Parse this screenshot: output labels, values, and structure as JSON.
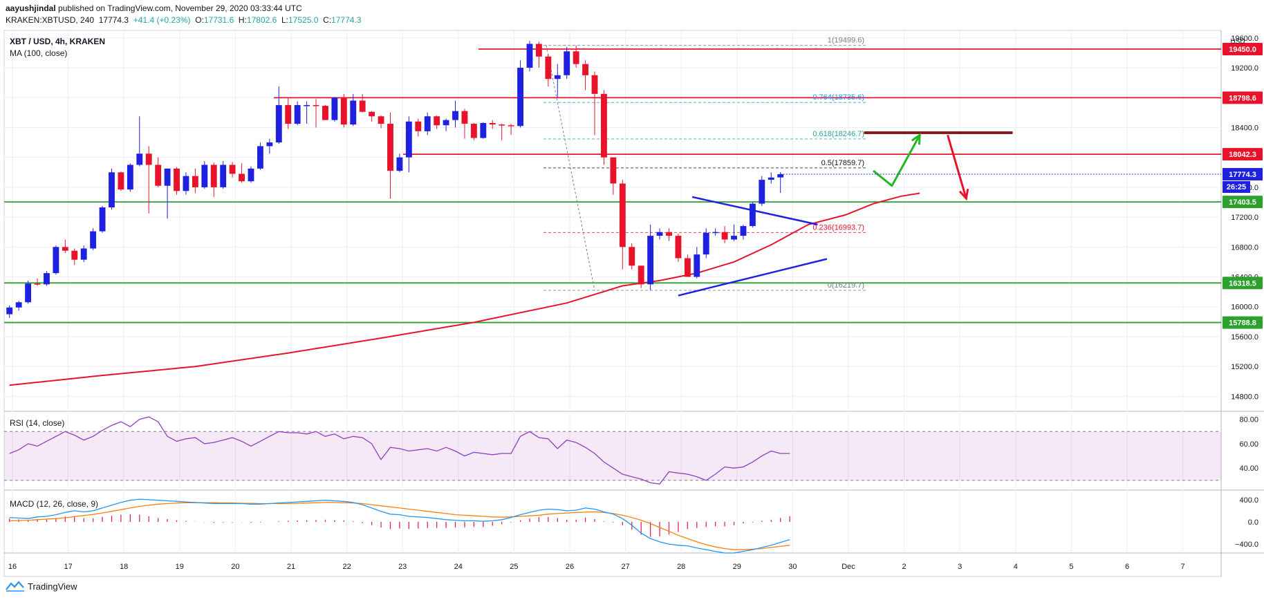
{
  "header": {
    "author": "aayushjindal",
    "published": "published on TradingView.com, November 29, 2020 03:33:44 UTC",
    "symbol": "KRAKEN:XBTUSD, 240",
    "last": "17774.3",
    "change": "+41.4 (+0.23%)",
    "o_label": "O:",
    "o": "17731.6",
    "h_label": "H:",
    "h": "17802.6",
    "l_label": "L:",
    "l": "17525.0",
    "c_label": "C:",
    "c": "17774.3"
  },
  "footer": {
    "brand": "TradingView"
  },
  "colors": {
    "up": "#1e22e0",
    "down": "#e8132b",
    "ma": "#e8132b",
    "support": "#2da12d",
    "rsi": "#8e3fbf",
    "macd": "#2196f3",
    "signal": "#ff7f0e",
    "hist": "#e91e63"
  },
  "chart_data": [
    {
      "type": "candlestick",
      "title": "XBT / USD, 4h, KRAKEN",
      "indicator_label": "MA (100, close)",
      "currency": "USD",
      "ylim": [
        14600,
        19700
      ],
      "y_ticks": [
        14800,
        15200,
        15600,
        16000,
        16400,
        16800,
        17200,
        17600,
        18000,
        18400,
        18800,
        19200,
        19600
      ],
      "y_tick_labels": [
        "14800.0",
        "15200.0",
        "15600.0",
        "16000.0",
        "16400.0",
        "16800.0",
        "17200.0",
        "17600.0",
        "18000.0",
        "18400.0",
        "18800.0",
        "19200.0",
        "19600.0"
      ],
      "x_labels": [
        "16",
        "17",
        "18",
        "19",
        "20",
        "21",
        "22",
        "23",
        "24",
        "25",
        "26",
        "27",
        "28",
        "29",
        "30",
        "Dec",
        "2",
        "3",
        "4",
        "5",
        "6",
        "7"
      ],
      "candles_ohlc": [
        [
          15900,
          16020,
          15850,
          15990
        ],
        [
          15990,
          16080,
          15950,
          16060
        ],
        [
          16060,
          16350,
          16040,
          16310
        ],
        [
          16310,
          16380,
          16280,
          16300
        ],
        [
          16300,
          16480,
          16280,
          16450
        ],
        [
          16450,
          16820,
          16430,
          16800
        ],
        [
          16800,
          16900,
          16720,
          16750
        ],
        [
          16750,
          16780,
          16560,
          16630
        ],
        [
          16630,
          16820,
          16600,
          16780
        ],
        [
          16780,
          17050,
          16760,
          17010
        ],
        [
          17010,
          17350,
          16990,
          17330
        ],
        [
          17330,
          17850,
          17300,
          17800
        ],
        [
          17800,
          17810,
          17550,
          17570
        ],
        [
          17570,
          17920,
          17540,
          17900
        ],
        [
          17900,
          18550,
          17880,
          18050
        ],
        [
          18050,
          18150,
          17250,
          17900
        ],
        [
          17900,
          18000,
          17600,
          17620
        ],
        [
          17620,
          17850,
          17180,
          17850
        ],
        [
          17850,
          17870,
          17500,
          17550
        ],
        [
          17550,
          17800,
          17500,
          17750
        ],
        [
          17750,
          17850,
          17520,
          17600
        ],
        [
          17600,
          17950,
          17580,
          17900
        ],
        [
          17900,
          17930,
          17470,
          17600
        ],
        [
          17600,
          17950,
          17580,
          17900
        ],
        [
          17900,
          17940,
          17730,
          17780
        ],
        [
          17780,
          17920,
          17660,
          17680
        ],
        [
          17680,
          17880,
          17660,
          17850
        ],
        [
          17850,
          18200,
          17830,
          18150
        ],
        [
          18150,
          18250,
          18050,
          18200
        ],
        [
          18200,
          18950,
          18180,
          18700
        ],
        [
          18700,
          18800,
          18380,
          18450
        ],
        [
          18450,
          18750,
          18430,
          18700
        ],
        [
          18700,
          18750,
          18450,
          18700
        ],
        [
          18700,
          18780,
          18400,
          18690
        ],
        [
          18690,
          18700,
          18500,
          18500
        ],
        [
          18500,
          18810,
          18480,
          18800
        ],
        [
          18800,
          18850,
          18400,
          18440
        ],
        [
          18440,
          18850,
          18420,
          18760
        ],
        [
          18760,
          18850,
          18600,
          18610
        ],
        [
          18610,
          18620,
          18480,
          18550
        ],
        [
          18550,
          18560,
          18390,
          18450
        ],
        [
          18450,
          18600,
          17450,
          17820
        ],
        [
          17820,
          18050,
          17800,
          18000
        ],
        [
          18000,
          18550,
          17800,
          18480
        ],
        [
          18480,
          18520,
          18280,
          18350
        ],
        [
          18350,
          18600,
          18300,
          18550
        ],
        [
          18550,
          18560,
          18380,
          18430
        ],
        [
          18430,
          18520,
          18350,
          18500
        ],
        [
          18500,
          18760,
          18400,
          18620
        ],
        [
          18620,
          18650,
          18250,
          18450
        ],
        [
          18450,
          18460,
          18230,
          18260
        ],
        [
          18260,
          18470,
          18250,
          18460
        ],
        [
          18460,
          18500,
          18380,
          18440
        ],
        [
          18440,
          18450,
          18230,
          18430
        ],
        [
          18430,
          18450,
          18300,
          18420
        ],
        [
          18420,
          19300,
          18400,
          19200
        ],
        [
          19200,
          19560,
          19150,
          19520
        ],
        [
          19520,
          19550,
          19200,
          19350
        ],
        [
          19350,
          19380,
          18950,
          19050
        ],
        [
          19050,
          19250,
          18800,
          19100
        ],
        [
          19100,
          19480,
          19050,
          19420
        ],
        [
          19420,
          19500,
          19200,
          19250
        ],
        [
          19250,
          19300,
          18900,
          19100
        ],
        [
          19100,
          19150,
          18300,
          18850
        ],
        [
          18850,
          18900,
          17900,
          18000
        ],
        [
          18000,
          18000,
          17500,
          17650
        ],
        [
          17650,
          17700,
          16500,
          16800
        ],
        [
          16800,
          16850,
          16500,
          16550
        ],
        [
          16550,
          16550,
          16250,
          16300
        ],
        [
          16300,
          17100,
          16220,
          16950
        ],
        [
          16950,
          17050,
          16900,
          17000
        ],
        [
          17000,
          17050,
          16880,
          16950
        ],
        [
          16950,
          16980,
          16600,
          16650
        ],
        [
          16650,
          16700,
          16400,
          16400
        ],
        [
          16400,
          16800,
          16380,
          16700
        ],
        [
          16700,
          17050,
          16650,
          16990
        ],
        [
          16990,
          17050,
          16950,
          17000
        ],
        [
          17000,
          17080,
          16850,
          16900
        ],
        [
          16900,
          17100,
          16880,
          16950
        ],
        [
          16950,
          17100,
          16900,
          17080
        ],
        [
          17080,
          17400,
          17060,
          17380
        ],
        [
          17380,
          17750,
          17350,
          17700
        ],
        [
          17700,
          17800,
          17650,
          17730
        ],
        [
          17731.6,
          17802.6,
          17525.0,
          17774.3
        ]
      ],
      "ma100_path": [
        [
          0,
          14950
        ],
        [
          10,
          15080
        ],
        [
          20,
          15200
        ],
        [
          30,
          15380
        ],
        [
          40,
          15580
        ],
        [
          50,
          15790
        ],
        [
          60,
          16050
        ],
        [
          66,
          16280
        ],
        [
          70,
          16350
        ],
        [
          74,
          16450
        ],
        [
          78,
          16600
        ],
        [
          82,
          16830
        ],
        [
          86,
          17100
        ],
        [
          90,
          17230
        ],
        [
          93,
          17380
        ],
        [
          96,
          17480
        ],
        [
          98,
          17520
        ]
      ],
      "horizontal_levels": [
        {
          "label": "19450.0",
          "kind": "resistance"
        },
        {
          "label": "18798.6",
          "kind": "resistance"
        },
        {
          "label": "18042.3",
          "kind": "resistance"
        },
        {
          "label": "17403.5",
          "kind": "support"
        },
        {
          "label": "16318.5",
          "kind": "support"
        },
        {
          "label": "15788.8",
          "kind": "support"
        }
      ],
      "level_values": [
        19450.0,
        18798.6,
        18042.3,
        17403.5,
        16318.5,
        15788.8
      ],
      "fib_levels": [
        {
          "label": "1(19499.6)",
          "value": 19499.6
        },
        {
          "label": "0.764(18735.6)",
          "value": 18735.6
        },
        {
          "label": "0.618(18246.7)",
          "value": 18246.7
        },
        {
          "label": "0.5(17859.7)",
          "value": 17859.7
        },
        {
          "label": "0.236(16993.7)",
          "value": 16993.7
        },
        {
          "label": "0(16219.7)",
          "value": 16219.7
        }
      ],
      "current_price_label": "17774.3",
      "countdown_label": "26:25",
      "triangle": {
        "upper": [
          [
            73.5,
            17470
          ],
          [
            87,
            17100
          ]
        ],
        "lower": [
          [
            72,
            16150
          ],
          [
            88,
            16640
          ]
        ]
      },
      "dark_level": {
        "from": 92,
        "to": 108,
        "value": 18330
      },
      "arrows": {
        "green": [
          [
            93,
            17820
          ],
          [
            95,
            17620
          ],
          [
            98,
            18300
          ]
        ],
        "red": [
          [
            101,
            18300
          ],
          [
            103,
            17450
          ]
        ]
      }
    },
    {
      "type": "line",
      "title": "RSI (14, close)",
      "ylim": [
        22,
        86
      ],
      "y_ticks": [
        40,
        60,
        80
      ],
      "y_tick_labels": [
        "40.00",
        "60.00",
        "80.00"
      ],
      "band": [
        30,
        70
      ],
      "values": [
        52,
        55,
        60,
        58,
        62,
        66,
        70,
        67,
        63,
        66,
        71,
        75,
        78,
        74,
        80,
        82,
        78,
        66,
        62,
        64,
        65,
        60,
        61,
        63,
        65,
        62,
        58,
        62,
        66,
        70,
        69,
        69,
        68,
        70,
        66,
        68,
        64,
        66,
        65,
        60,
        47,
        57,
        56,
        54,
        55,
        56,
        54,
        57,
        54,
        50,
        53,
        52,
        51,
        52,
        52,
        66,
        70,
        65,
        64,
        56,
        63,
        61,
        57,
        52,
        45,
        40,
        35,
        33,
        31,
        28,
        27,
        37,
        36,
        35,
        33,
        30,
        35,
        41,
        40,
        41,
        45,
        50,
        54,
        52,
        52
      ]
    },
    {
      "type": "bar+line",
      "title": "MACD (12, 26, close, 9)",
      "ylim": [
        -560,
        560
      ],
      "y_ticks": [
        -400,
        0,
        400
      ],
      "y_tick_labels": [
        "−400.0",
        "0.0",
        "400.0"
      ],
      "macd": [
        80,
        70,
        60,
        90,
        100,
        130,
        170,
        200,
        180,
        200,
        250,
        300,
        350,
        390,
        410,
        400,
        390,
        380,
        370,
        360,
        350,
        340,
        330,
        330,
        330,
        330,
        320,
        320,
        330,
        340,
        350,
        360,
        370,
        380,
        390,
        380,
        370,
        350,
        310,
        250,
        190,
        140,
        130,
        100,
        90,
        80,
        60,
        40,
        30,
        20,
        20,
        10,
        20,
        40,
        80,
        130,
        170,
        210,
        230,
        220,
        200,
        210,
        250,
        230,
        180,
        140,
        60,
        -60,
        -200,
        -300,
        -360,
        -400,
        -420,
        -430,
        -470,
        -500,
        -530,
        -560,
        -560,
        -530,
        -500,
        -460,
        -420,
        -370,
        -320
      ],
      "signal": [
        20,
        25,
        30,
        40,
        50,
        60,
        75,
        95,
        115,
        135,
        160,
        190,
        220,
        250,
        280,
        300,
        320,
        330,
        340,
        345,
        345,
        345,
        345,
        340,
        340,
        335,
        335,
        330,
        330,
        330,
        330,
        335,
        340,
        345,
        350,
        350,
        345,
        340,
        330,
        310,
        290,
        270,
        250,
        230,
        210,
        190,
        170,
        150,
        130,
        120,
        110,
        100,
        90,
        85,
        90,
        100,
        110,
        120,
        140,
        150,
        160,
        170,
        175,
        180,
        170,
        150,
        120,
        80,
        30,
        -30,
        -100,
        -170,
        -240,
        -300,
        -360,
        -410,
        -450,
        -480,
        -500,
        -500,
        -490,
        -480,
        -460,
        -440,
        -420
      ]
    }
  ]
}
